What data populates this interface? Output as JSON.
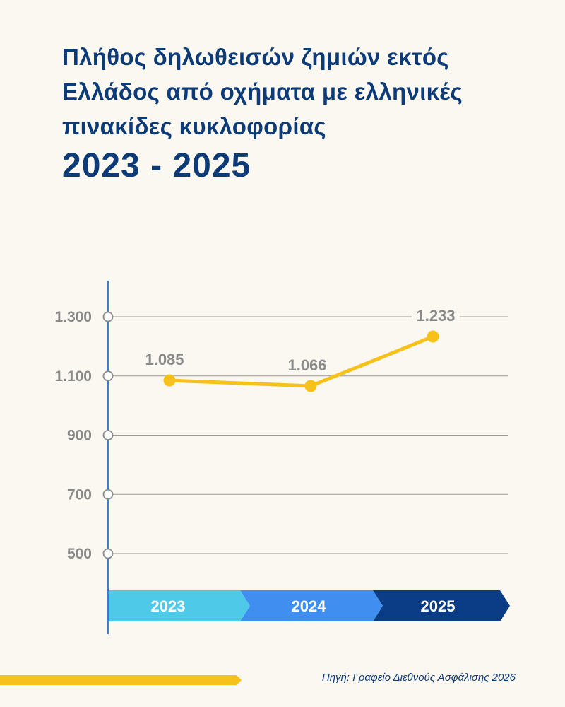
{
  "title": {
    "line1": "Πλήθος δηλωθεισών ζημιών εκτός",
    "line2": "Ελλάδος από οχήματα με ελληνικές",
    "line3": "πινακίδες κυκλοφορίας",
    "years": "2023 - 2025"
  },
  "source": "Πηγή: Γραφείο Διεθνούς Ασφάλισης 2026",
  "colors": {
    "navy": "#0d3b78",
    "line": "#f6c11a",
    "axis": "#3a7bd5",
    "band_2023": "#4fc9e8",
    "band_2024": "#3f8ef0",
    "band_2025": "#0b3d86"
  },
  "chart_data": {
    "type": "line",
    "categories": [
      "2023",
      "2024",
      "2025"
    ],
    "series": [
      {
        "values": [
          1085,
          1066,
          1233
        ],
        "labels": [
          "1.085",
          "1.066",
          "1.233"
        ]
      }
    ],
    "yticks": [
      500,
      700,
      900,
      1100,
      1300
    ],
    "ytick_labels": [
      "500",
      "700",
      "900",
      "1.100",
      "1.300"
    ],
    "ylim": [
      500,
      1300
    ],
    "grid": true
  }
}
